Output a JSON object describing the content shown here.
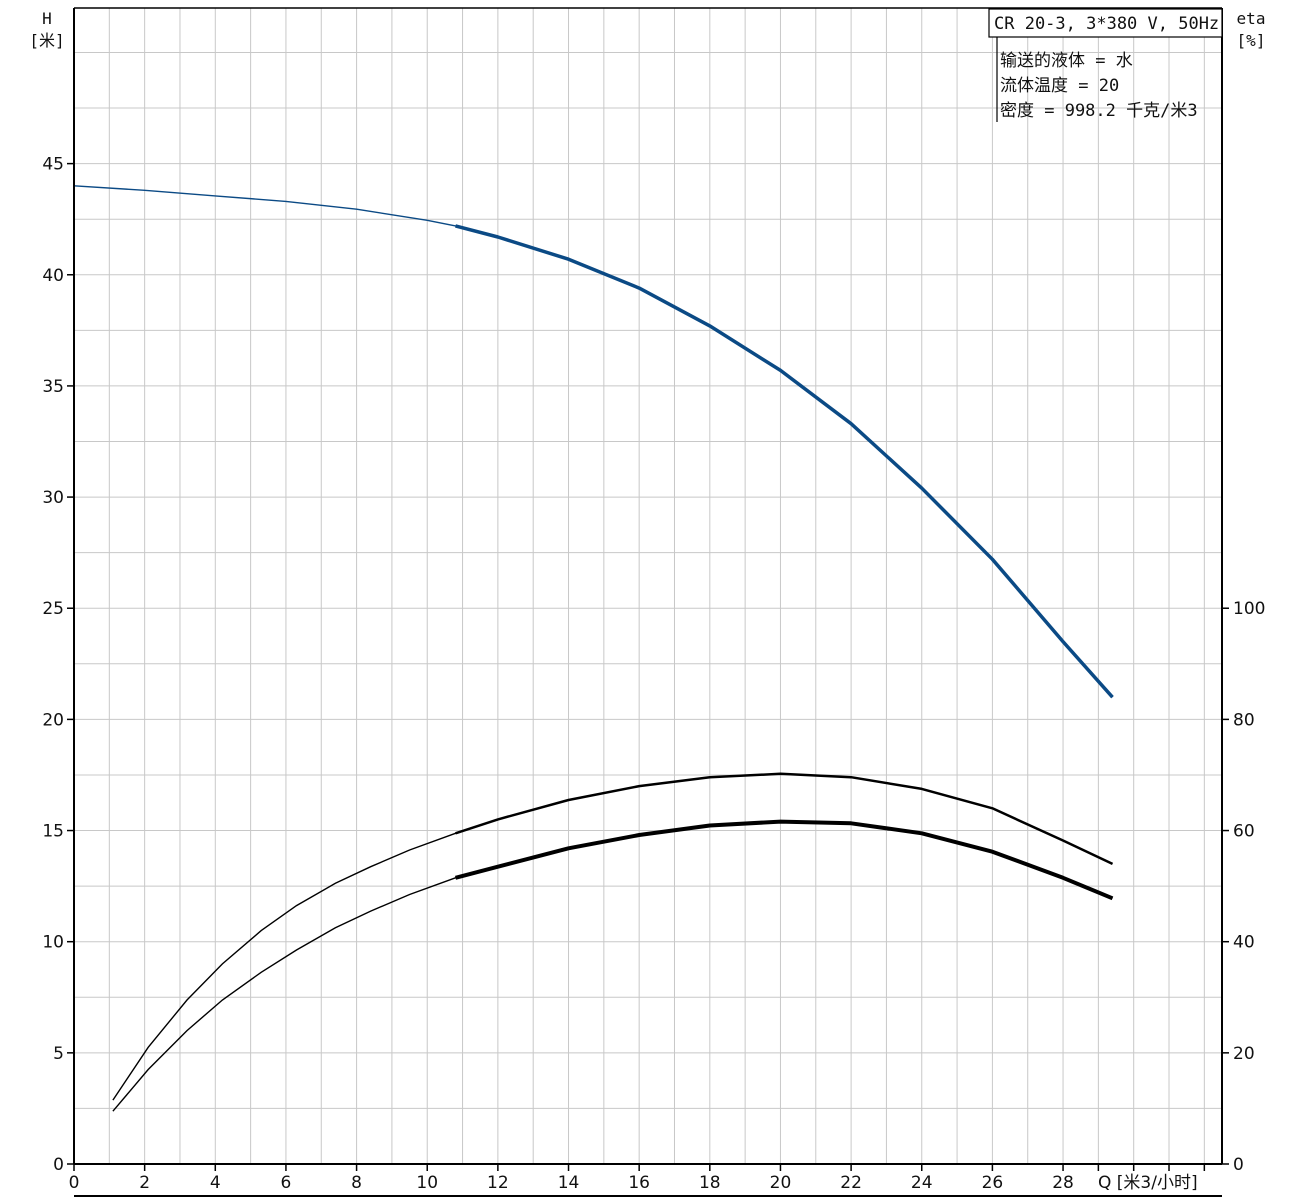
{
  "header": {
    "title": "CR 20-3, 3*380 V, 50Hz",
    "info_lines": [
      "输送的液体 = 水",
      "流体温度 = 20",
      "密度 = 998.2 千克/米3"
    ]
  },
  "chart_data": {
    "type": "line",
    "y_left": {
      "label_line1": "H",
      "label_line2": "[米]",
      "range": [
        0,
        52
      ],
      "ticks": [
        0,
        5,
        10,
        15,
        20,
        25,
        30,
        35,
        40,
        45
      ]
    },
    "y_right": {
      "label_line1": "eta",
      "label_line2": "[%]",
      "ticks": [
        0,
        20,
        40,
        60,
        80,
        100
      ]
    },
    "x_axis": {
      "label": "Q [米3/小时]",
      "range": [
        0,
        32.5
      ],
      "ticks": [
        0,
        2,
        4,
        6,
        8,
        10,
        12,
        14,
        16,
        18,
        20,
        22,
        24,
        26,
        28
      ]
    },
    "grid": true,
    "series": [
      {
        "axis": "left",
        "color": "#0b4a85",
        "operating_range_start": 10.8,
        "x": [
          0,
          2,
          4,
          6,
          8,
          10,
          10.8,
          12,
          14,
          16,
          18,
          20,
          22,
          24,
          26,
          28,
          29.4
        ],
        "y": [
          44.0,
          43.8,
          43.55,
          43.3,
          42.95,
          42.45,
          42.2,
          41.7,
          40.7,
          39.4,
          37.7,
          35.7,
          33.3,
          30.4,
          27.2,
          23.5,
          21.0
        ]
      },
      {
        "axis": "right",
        "color": "#000000",
        "operating_range_start": 10.8,
        "x": [
          1.1,
          2.1,
          3.2,
          4.2,
          5.3,
          6.3,
          7.4,
          8.4,
          9.5,
          10.8,
          12,
          14,
          16,
          18,
          20,
          22,
          24,
          26,
          28,
          29.4
        ],
        "y": [
          11.5,
          21,
          29.5,
          36,
          42,
          46.5,
          50.5,
          53.5,
          56.5,
          59.5,
          62,
          65.5,
          68,
          69.6,
          70.2,
          69.6,
          67.5,
          64,
          58.2,
          54
        ]
      },
      {
        "axis": "right",
        "color": "#000000",
        "operating_range_start": 10.8,
        "x": [
          1.1,
          2.1,
          3.2,
          4.2,
          5.3,
          6.3,
          7.4,
          8.4,
          9.5,
          10.8,
          12,
          14,
          16,
          18,
          20,
          22,
          24,
          26,
          28,
          29.4
        ],
        "y": [
          9.5,
          17,
          24,
          29.5,
          34.5,
          38.5,
          42.5,
          45.5,
          48.5,
          51.5,
          53.5,
          56.8,
          59.2,
          60.9,
          61.6,
          61.3,
          59.5,
          56.2,
          51.5,
          47.8
        ]
      }
    ]
  }
}
